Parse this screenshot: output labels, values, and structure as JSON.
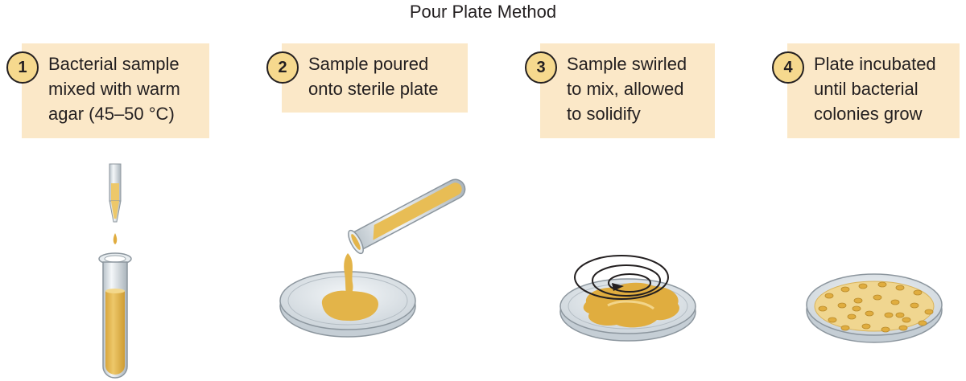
{
  "title": "Pour Plate Method",
  "steps": [
    {
      "number": "1",
      "lines": [
        "Bacterial sample",
        "mixed with warm",
        "agar (45–50 °C)"
      ]
    },
    {
      "number": "2",
      "lines": [
        "Sample poured",
        "onto sterile plate"
      ]
    },
    {
      "number": "3",
      "lines": [
        "Sample swirled",
        "to mix, allowed",
        "to solidify"
      ]
    },
    {
      "number": "4",
      "lines": [
        "Plate incubated",
        "until bacterial",
        "colonies grow"
      ]
    }
  ],
  "colors": {
    "label_box": "#fbe8c8",
    "number_circle": "#f6d98e",
    "agar": "#e5b853",
    "agar_light": "#f0d690",
    "glass": "#dde3e8",
    "glass_edge": "#8c969e",
    "text": "#231f20"
  }
}
